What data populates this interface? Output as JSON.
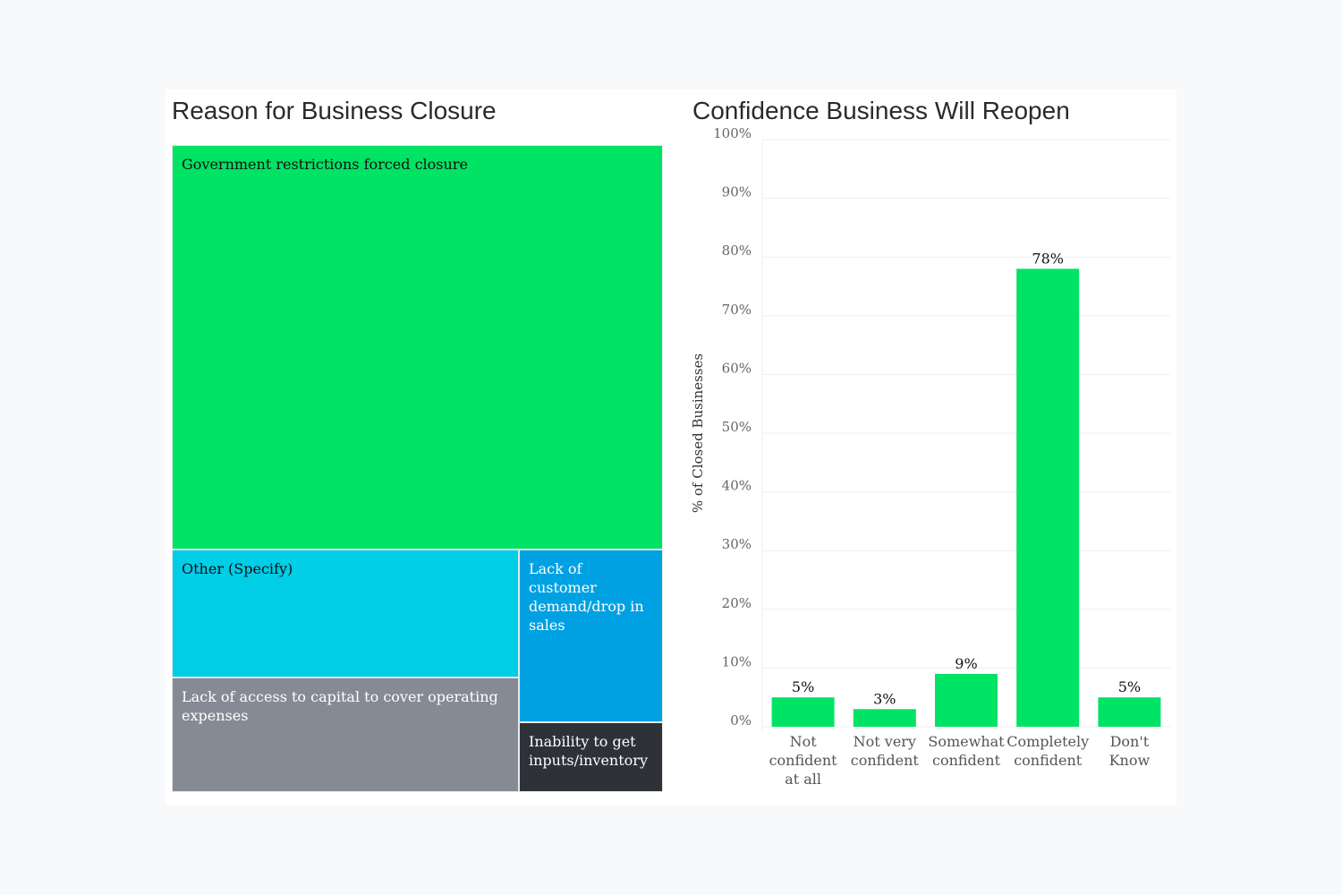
{
  "chart_data": [
    {
      "type": "treemap",
      "title": "Reason for Business Closure",
      "items": [
        {
          "label": "Government restrictions forced closure",
          "value": 62.5,
          "color": "#00e364",
          "text_color": "#111111"
        },
        {
          "label": "Other (Specify)",
          "value": 14.0,
          "color": "#00cde6",
          "text_color": "#111111"
        },
        {
          "label": "Lack of access to capital to cover operating expenses",
          "value": 12.5,
          "color": "#868a94",
          "text_color": "#ffffff"
        },
        {
          "label": "Lack of customer demand/drop in sales",
          "value": 7.8,
          "color": "#00a1e2",
          "text_color": "#ffffff"
        },
        {
          "label": "Inability to get inputs/inventory",
          "value": 3.2,
          "color": "#2e3138",
          "text_color": "#ffffff"
        }
      ]
    },
    {
      "type": "bar",
      "title": "Confidence Business Will Reopen",
      "ylabel": "% of Closed Businesses",
      "ylim": [
        0,
        100
      ],
      "grid": true,
      "yticks": [
        "0%",
        "10%",
        "20%",
        "30%",
        "40%",
        "50%",
        "60%",
        "70%",
        "80%",
        "90%",
        "100%"
      ],
      "categories": [
        [
          "Not",
          "confident",
          "at all"
        ],
        [
          "Not very",
          "confident"
        ],
        [
          "Somewhat",
          "confident"
        ],
        [
          "Completely",
          "confident"
        ],
        [
          "Don't",
          "Know"
        ]
      ],
      "values": [
        5,
        3,
        9,
        78,
        5
      ],
      "data_labels": [
        "5%",
        "3%",
        "9%",
        "78%",
        "5%"
      ],
      "color": "#00e364"
    }
  ]
}
